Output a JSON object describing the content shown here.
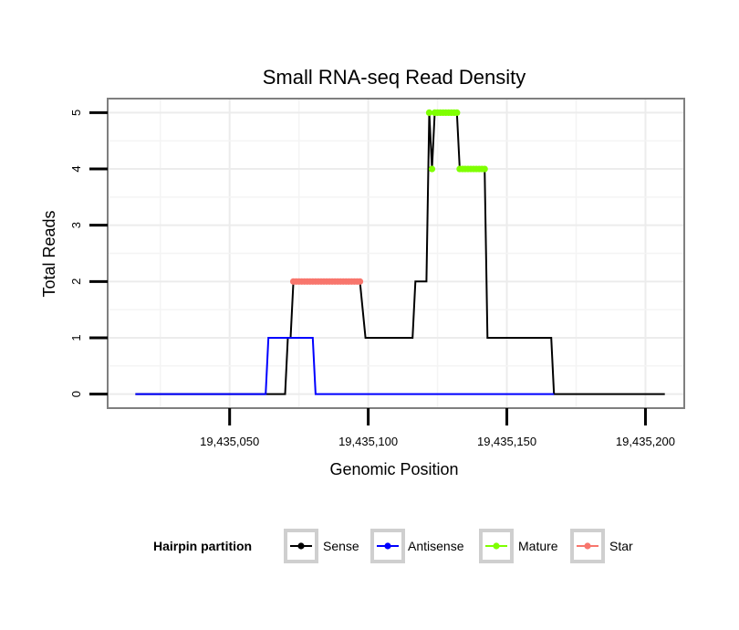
{
  "chart_data": {
    "type": "line",
    "title": "Small RNA-seq Read Density",
    "xlabel": "Genomic Position",
    "ylabel": "Total Reads",
    "xlim": [
      19435006,
      19435214
    ],
    "ylim": [
      -0.25,
      5.25
    ],
    "x_ticks": [
      19435050,
      19435100,
      19435150,
      19435200
    ],
    "x_tick_labels": [
      "19,435,050",
      "19,435,100",
      "19,435,150",
      "19,435,200"
    ],
    "y_ticks": [
      0,
      1,
      2,
      3,
      4,
      5
    ],
    "y_tick_labels": [
      "0",
      "1",
      "2",
      "3",
      "4",
      "5"
    ],
    "grid": true,
    "legend": {
      "title": "Hairpin partition",
      "position": "bottom",
      "entries": [
        "Sense",
        "Antisense",
        "Mature",
        "Star"
      ]
    },
    "series": [
      {
        "name": "Sense",
        "color": "#000000",
        "style": "line",
        "x": [
          19435016,
          19435070,
          19435071,
          19435072,
          19435073,
          19435097,
          19435099,
          19435116,
          19435117,
          19435121,
          19435122,
          19435123,
          19435124,
          19435132,
          19435133,
          19435142,
          19435143,
          19435166,
          19435167,
          19435207
        ],
        "y": [
          0,
          0,
          1,
          1,
          2,
          2,
          1,
          1,
          2,
          2,
          5,
          4,
          5,
          5,
          4,
          4,
          1,
          1,
          0,
          0
        ]
      },
      {
        "name": "Antisense",
        "color": "#0000ff",
        "style": "line",
        "x": [
          19435016,
          19435063,
          19435064,
          19435080,
          19435081,
          19435167
        ],
        "y": [
          0,
          0,
          1,
          1,
          0,
          0
        ]
      },
      {
        "name": "Mature",
        "color": "#7fff00",
        "style": "points",
        "x": [
          19435122,
          19435123,
          19435124,
          19435125,
          19435126,
          19435127,
          19435128,
          19435129,
          19435130,
          19435131,
          19435132,
          19435133,
          19435134,
          19435135,
          19435136,
          19435137,
          19435138,
          19435139,
          19435140,
          19435141,
          19435142
        ],
        "y": [
          5,
          4,
          5,
          5,
          5,
          5,
          5,
          5,
          5,
          5,
          5,
          4,
          4,
          4,
          4,
          4,
          4,
          4,
          4,
          4,
          4
        ]
      },
      {
        "name": "Star",
        "color": "#f8766d",
        "style": "points",
        "x": [
          19435073,
          19435074,
          19435075,
          19435076,
          19435077,
          19435078,
          19435079,
          19435080,
          19435081,
          19435082,
          19435083,
          19435084,
          19435085,
          19435086,
          19435087,
          19435088,
          19435089,
          19435090,
          19435091,
          19435092,
          19435093,
          19435094,
          19435095,
          19435096,
          19435097
        ],
        "y": [
          2,
          2,
          2,
          2,
          2,
          2,
          2,
          2,
          2,
          2,
          2,
          2,
          2,
          2,
          2,
          2,
          2,
          2,
          2,
          2,
          2,
          2,
          2,
          2,
          2
        ]
      }
    ]
  }
}
